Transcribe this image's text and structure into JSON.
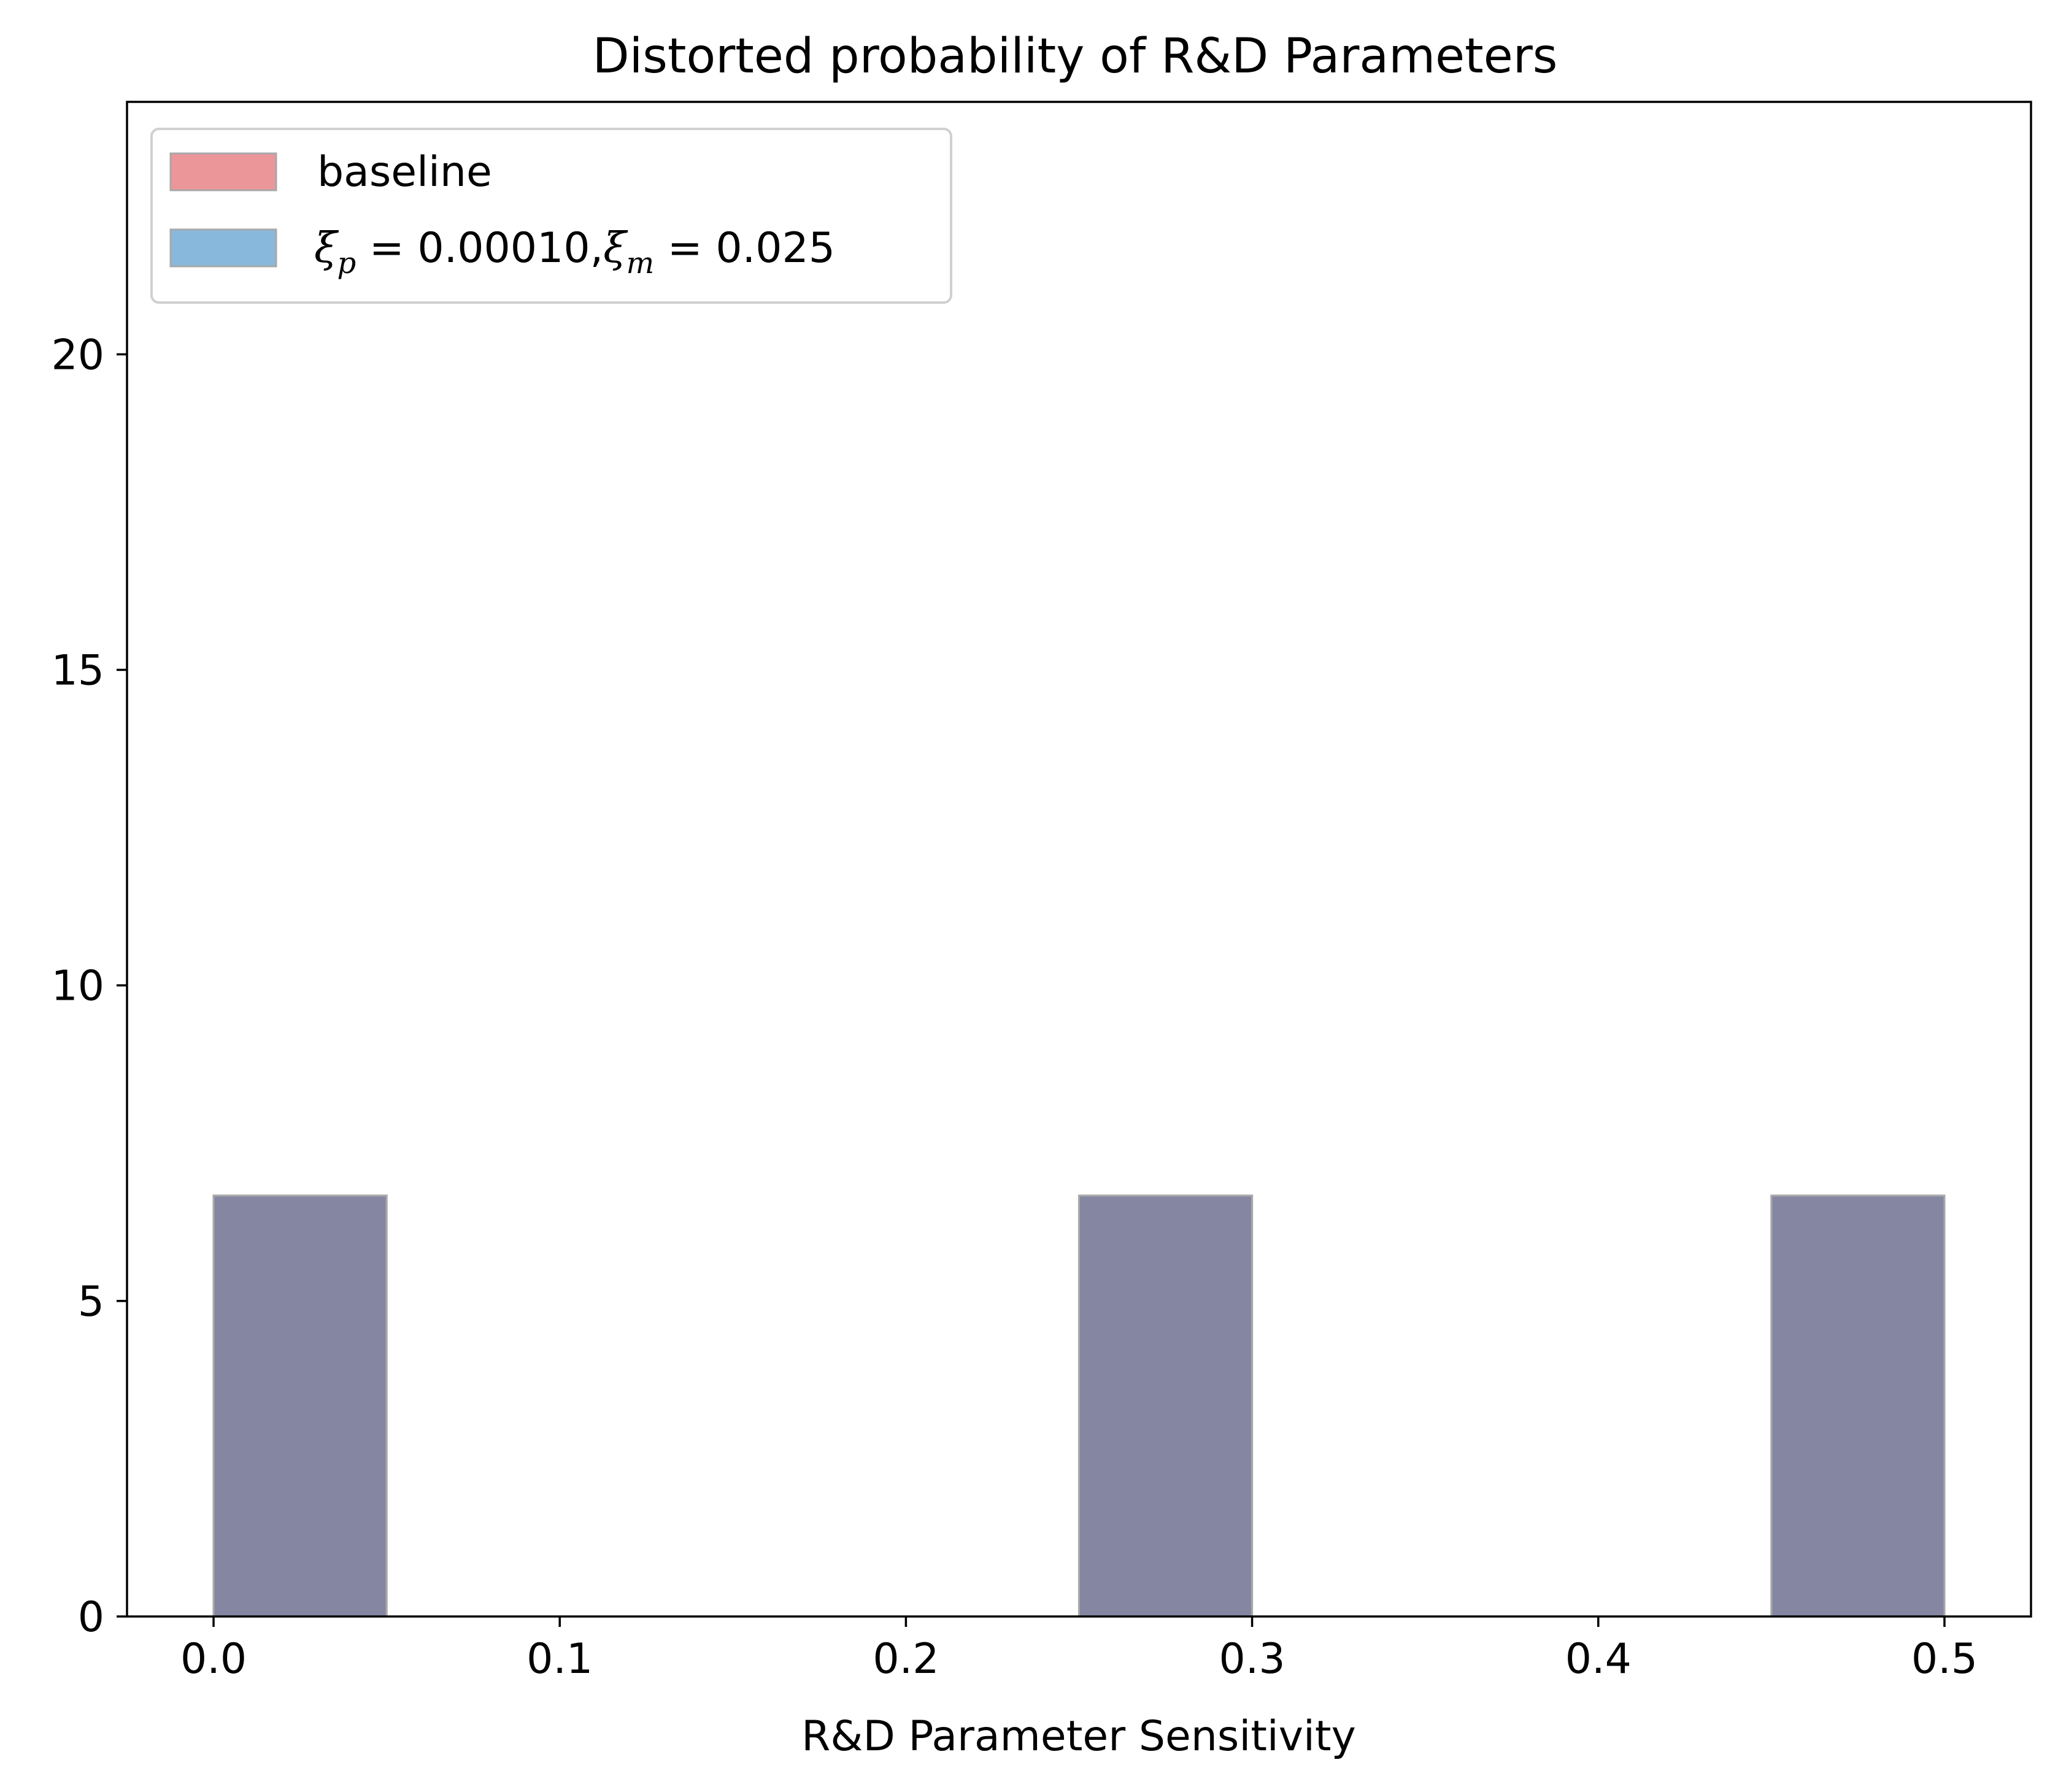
{
  "chart_data": {
    "type": "bar",
    "title": "Distorted probability of R&D Parameters",
    "xlabel": "R&D Parameter Sensitivity",
    "ylabel": "",
    "xlim": [
      -0.025,
      0.525
    ],
    "ylim": [
      0,
      24
    ],
    "xticks": [
      0.0,
      0.1,
      0.2,
      0.3,
      0.4,
      0.5
    ],
    "xtick_labels": [
      "0.0",
      "0.1",
      "0.2",
      "0.3",
      "0.4",
      "0.5"
    ],
    "yticks": [
      0,
      5,
      10,
      15,
      20
    ],
    "ytick_labels": [
      "0",
      "5",
      "10",
      "15",
      "20"
    ],
    "grid": false,
    "legend_position": "top-left",
    "series": [
      {
        "name": "baseline",
        "color": "#e67c80",
        "bins": [
          [
            0.0,
            0.05
          ],
          [
            0.25,
            0.3
          ],
          [
            0.45,
            0.5
          ]
        ],
        "values": [
          6.67,
          6.67,
          6.67
        ]
      },
      {
        "name": "ξp = 0.00010,ξm = 0.025",
        "color": "#6aa6d3",
        "bins": [
          [
            0.0,
            0.05
          ],
          [
            0.25,
            0.3
          ],
          [
            0.45,
            0.5
          ]
        ],
        "values": [
          6.67,
          6.67,
          6.67
        ]
      }
    ],
    "overlap_color": "#8586a2",
    "legend": {
      "baseline": "baseline",
      "xi_symbol": "ξ",
      "sub_p": "p",
      "sub_m": "m",
      "eq_p": " = 0.00010,",
      "eq_m": " = 0.025"
    }
  }
}
